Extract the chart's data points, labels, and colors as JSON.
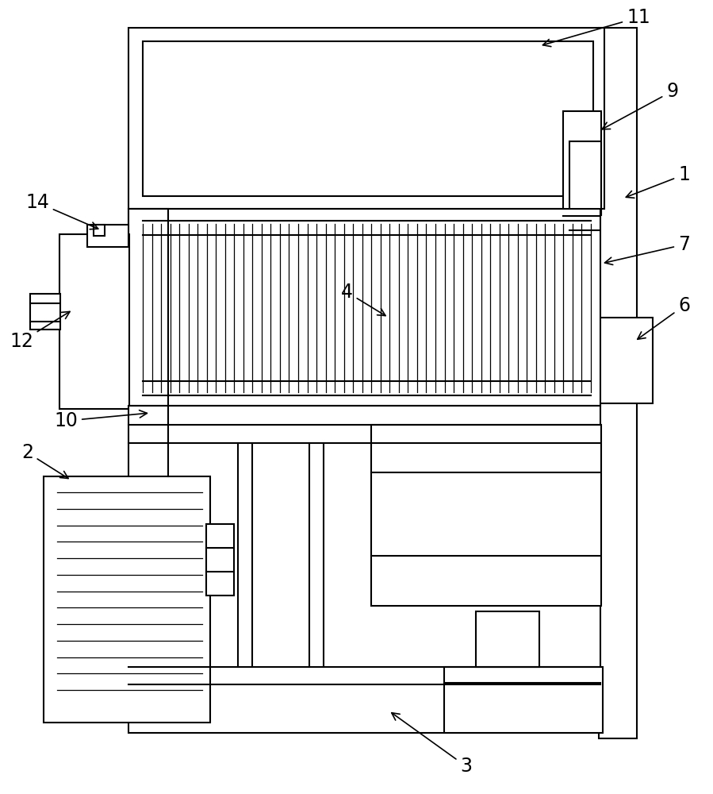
{
  "bg_color": "#ffffff",
  "line_color": "#000000",
  "lw": 1.5,
  "fig_width": 8.99,
  "fig_height": 10.0
}
